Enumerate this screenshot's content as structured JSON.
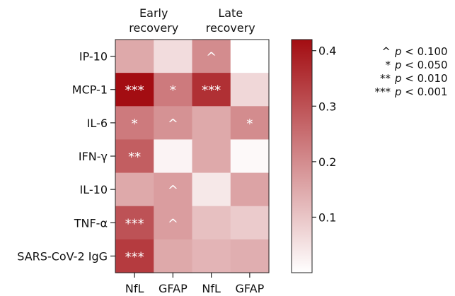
{
  "chart_data": {
    "type": "heatmap",
    "group_labels": [
      [
        "Early",
        "recovery"
      ],
      [
        "Late",
        "recovery"
      ]
    ],
    "columns": [
      "NfL",
      "GFAP",
      "NfL",
      "GFAP"
    ],
    "rows": [
      "IP-10",
      "MCP-1",
      "IL-6",
      "IFN-γ",
      "IL-10",
      "TNF-α",
      "SARS-CoV-2 IgG"
    ],
    "values": [
      [
        0.15,
        0.06,
        0.2,
        0.0
      ],
      [
        0.42,
        0.23,
        0.36,
        0.07
      ],
      [
        0.23,
        0.19,
        0.15,
        0.2
      ],
      [
        0.28,
        0.02,
        0.15,
        0.01
      ],
      [
        0.15,
        0.17,
        0.04,
        0.16
      ],
      [
        0.3,
        0.17,
        0.11,
        0.09
      ],
      [
        0.34,
        0.15,
        0.13,
        0.14
      ]
    ],
    "annotations": [
      [
        "",
        "",
        "^",
        ""
      ],
      [
        "***",
        "*",
        "***",
        ""
      ],
      [
        "*",
        "^",
        "",
        "*"
      ],
      [
        "**",
        "",
        "",
        ""
      ],
      [
        "",
        "^",
        "",
        ""
      ],
      [
        "***",
        "^",
        "",
        ""
      ],
      [
        "***",
        "",
        "",
        ""
      ]
    ],
    "colorbar": {
      "range": [
        0,
        0.42
      ],
      "ticks": [
        "0.1",
        "0.2",
        "0.3",
        "0.4"
      ],
      "tick_values": [
        0.1,
        0.2,
        0.3,
        0.4
      ],
      "color_low": "#ffffff",
      "color_high": "#a30d12"
    },
    "legend": [
      {
        "symbol": "^",
        "text": "p < 0.100"
      },
      {
        "symbol": "*",
        "text": "p < 0.050"
      },
      {
        "symbol": "**",
        "text": "p < 0.010"
      },
      {
        "symbol": "***",
        "text": "p < 0.001"
      }
    ]
  }
}
